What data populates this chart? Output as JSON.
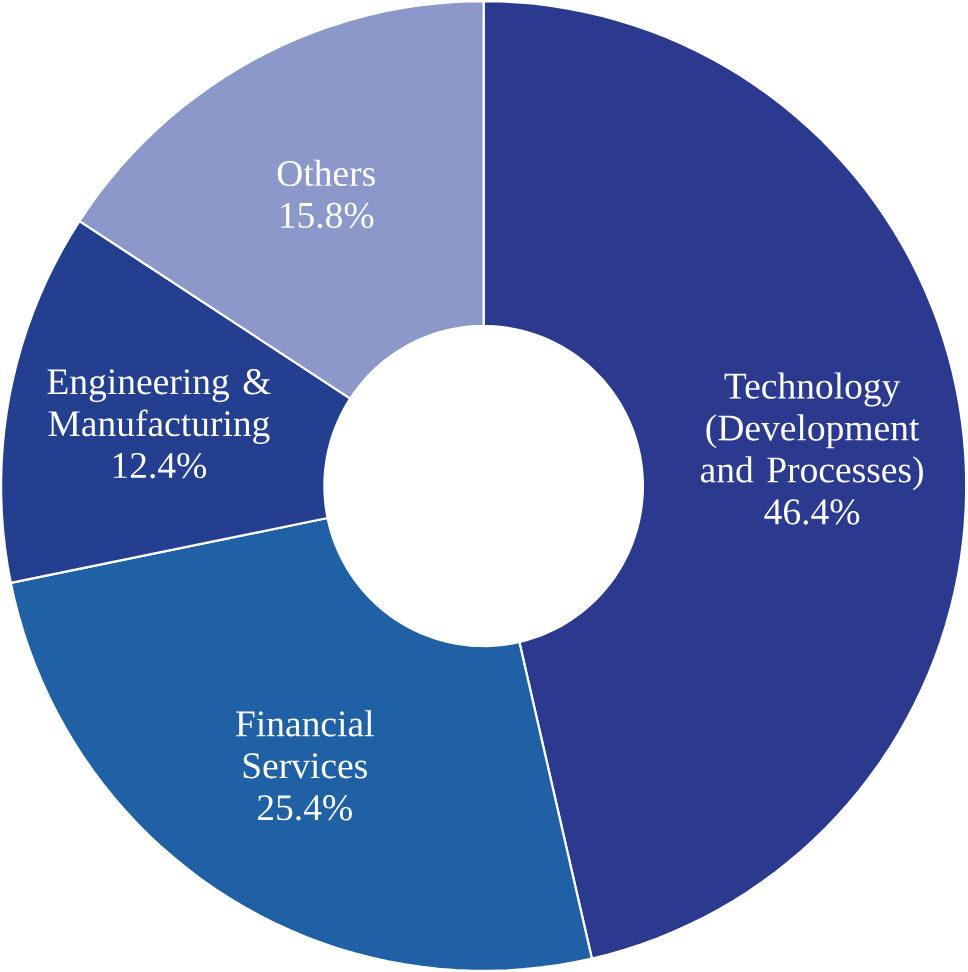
{
  "chart_data": {
    "type": "donut",
    "categories": [
      "Technology (Development and Processes)",
      "Financial Services",
      "Engineering & Manufacturing",
      "Others"
    ],
    "values": [
      46.4,
      25.4,
      12.4,
      15.8
    ],
    "value_labels": [
      "46.4%",
      "25.4%",
      "12.4%",
      "15.8%"
    ],
    "colors": [
      "#2b3a8f",
      "#2060a4",
      "#253f90",
      "#8b98c9"
    ]
  }
}
